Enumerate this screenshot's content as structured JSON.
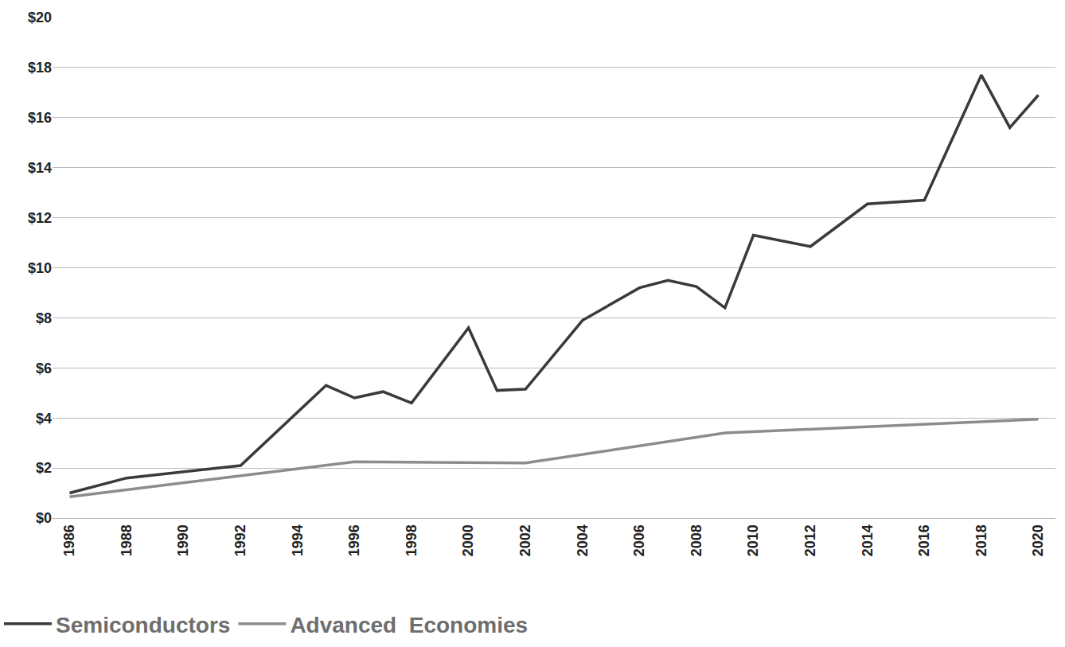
{
  "chart_data": {
    "type": "line",
    "series": [
      {
        "name": "Semiconductors",
        "color": "#3a3a3a",
        "x": [
          1986,
          1988,
          1992,
          1995,
          1996,
          1997,
          1998,
          2000,
          2001,
          2002,
          2004,
          2006,
          2007,
          2008,
          2009,
          2010,
          2012,
          2014,
          2016,
          2018,
          2019,
          2020
        ],
        "values": [
          1.0,
          1.6,
          2.1,
          5.3,
          4.8,
          5.05,
          4.6,
          7.6,
          5.1,
          5.15,
          7.9,
          9.2,
          9.5,
          9.25,
          8.4,
          11.3,
          10.85,
          12.55,
          12.7,
          17.7,
          15.6,
          16.9
        ]
      },
      {
        "name": "Advanced  Economies",
        "color": "#8c8c8c",
        "x": [
          1986,
          1996,
          2002,
          2009,
          2020
        ],
        "values": [
          0.85,
          2.25,
          2.2,
          3.4,
          3.95
        ]
      }
    ],
    "xlim": [
      1985.4,
      2020.6
    ],
    "xticks": [
      1986,
      1988,
      1990,
      1992,
      1994,
      1996,
      1998,
      2000,
      2002,
      2004,
      2006,
      2008,
      2010,
      2012,
      2014,
      2016,
      2018,
      2020
    ],
    "ylim": [
      0,
      20
    ],
    "yticks": [
      {
        "value": 0,
        "label": "$0"
      },
      {
        "value": 2,
        "label": "$2"
      },
      {
        "value": 4,
        "label": "$4"
      },
      {
        "value": 6,
        "label": "$6"
      },
      {
        "value": 8,
        "label": "$8"
      },
      {
        "value": 10,
        "label": "$10"
      },
      {
        "value": 12,
        "label": "$12"
      },
      {
        "value": 14,
        "label": "$14"
      },
      {
        "value": 16,
        "label": "$16"
      },
      {
        "value": 18,
        "label": "$18"
      },
      {
        "value": 20,
        "label": "$20"
      }
    ],
    "grid": true,
    "legend": "bottom left"
  }
}
